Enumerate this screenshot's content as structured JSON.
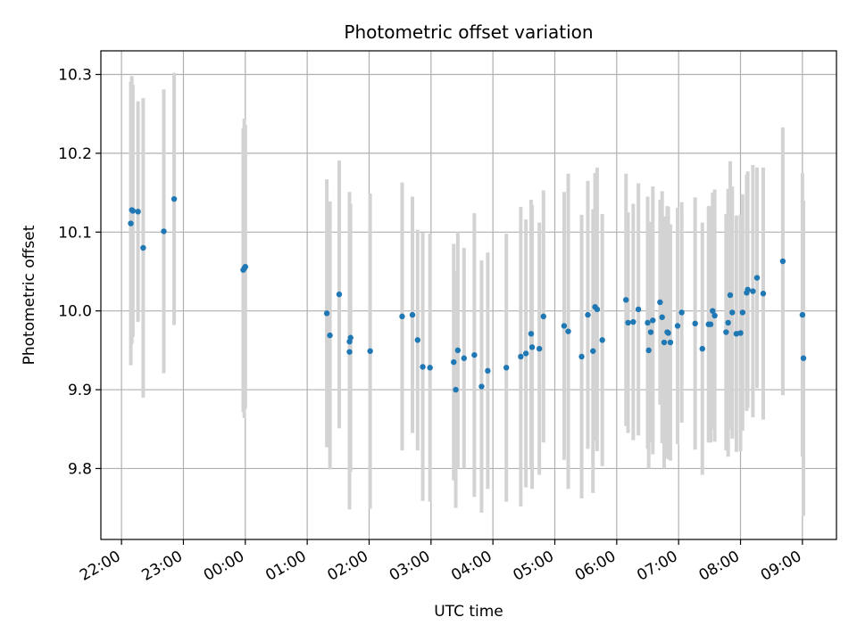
{
  "chart_data": {
    "type": "scatter",
    "title": "Photometric offset variation",
    "xlabel": "UTC time",
    "ylabel": "Photometric offset",
    "x_tick_labels": [
      "22:00",
      "23:00",
      "00:00",
      "01:00",
      "02:00",
      "03:00",
      "04:00",
      "05:00",
      "06:00",
      "07:00",
      "08:00",
      "09:00"
    ],
    "y_tick_labels": [
      "9.8",
      "9.9",
      "10.0",
      "10.1",
      "10.2",
      "10.3"
    ],
    "y_ticks": [
      9.8,
      9.9,
      10.0,
      10.1,
      10.2,
      10.3
    ],
    "xlim": [
      "21:40",
      "09:33"
    ],
    "ylim": [
      9.71,
      10.33
    ],
    "grid": true,
    "colors": {
      "point": "#1f77b4",
      "errorbar": "#d3d3d3",
      "grid": "#b0b0b0"
    },
    "series": [
      {
        "x": [
          "22:09",
          "22:10",
          "22:11",
          "22:16",
          "22:21",
          "22:41",
          "22:51",
          "23:58",
          "23:59",
          "00:00",
          "01:19",
          "01:22",
          "01:31",
          "01:41",
          "01:41",
          "01:42",
          "02:01",
          "02:32",
          "02:42",
          "02:47",
          "02:52",
          "02:59",
          "03:22",
          "03:24",
          "03:26",
          "03:32",
          "03:42",
          "03:49",
          "03:55",
          "04:13",
          "04:27",
          "04:32",
          "04:37",
          "04:38",
          "04:45",
          "04:49",
          "05:09",
          "05:13",
          "05:26",
          "05:32",
          "05:37",
          "05:39",
          "05:41",
          "05:46",
          "06:09",
          "06:11",
          "06:16",
          "06:21",
          "06:30",
          "06:31",
          "06:33",
          "06:35",
          "06:42",
          "06:44",
          "06:46",
          "06:49",
          "06:50",
          "06:52",
          "06:59",
          "07:03",
          "07:16",
          "07:23",
          "07:29",
          "07:31",
          "07:33",
          "07:35",
          "07:46",
          "07:48",
          "07:50",
          "07:52",
          "07:56",
          "08:00",
          "08:02",
          "08:06",
          "08:07",
          "08:12",
          "08:16",
          "08:22",
          "08:41",
          "09:00",
          "09:01"
        ],
        "y": [
          10.111,
          10.128,
          10.127,
          10.126,
          10.08,
          10.101,
          10.142,
          10.052,
          10.054,
          10.056,
          9.997,
          9.969,
          10.021,
          9.961,
          9.948,
          9.966,
          9.949,
          9.993,
          9.995,
          9.963,
          9.929,
          9.928,
          9.935,
          9.9,
          9.95,
          9.94,
          9.944,
          9.904,
          9.924,
          9.928,
          9.942,
          9.946,
          9.971,
          9.954,
          9.952,
          9.993,
          9.981,
          9.974,
          9.942,
          9.995,
          9.949,
          10.005,
          10.002,
          9.963,
          10.014,
          9.985,
          9.986,
          10.002,
          9.985,
          9.95,
          9.973,
          9.988,
          10.011,
          9.992,
          9.96,
          9.973,
          9.972,
          9.96,
          9.981,
          9.998,
          9.984,
          9.952,
          9.983,
          9.983,
          10.0,
          9.994,
          9.973,
          9.985,
          10.02,
          9.998,
          9.971,
          9.972,
          9.998,
          10.023,
          10.027,
          10.025,
          10.042,
          10.022,
          10.063,
          9.995,
          9.94
        ],
        "yerr": [
          0.18,
          0.17,
          0.16,
          0.14,
          0.19,
          0.18,
          0.16,
          0.18,
          0.19,
          0.18,
          0.17,
          0.17,
          0.17,
          0.19,
          0.2,
          0.17,
          0.2,
          0.17,
          0.15,
          0.14,
          0.17,
          0.17,
          0.15,
          0.15,
          0.15,
          0.14,
          0.18,
          0.16,
          0.15,
          0.17,
          0.19,
          0.17,
          0.17,
          0.18,
          0.16,
          0.16,
          0.17,
          0.2,
          0.18,
          0.17,
          0.18,
          0.17,
          0.18,
          0.16,
          0.16,
          0.14,
          0.15,
          0.16,
          0.16,
          0.15,
          0.14,
          0.17,
          0.13,
          0.16,
          0.16,
          0.16,
          0.16,
          0.15,
          0.15,
          0.14,
          0.16,
          0.16,
          0.15,
          0.15,
          0.15,
          0.16,
          0.15,
          0.17,
          0.17,
          0.16,
          0.15,
          0.15,
          0.15,
          0.15,
          0.15,
          0.16,
          0.14,
          0.16,
          0.17,
          0.18,
          0.2
        ]
      }
    ]
  }
}
